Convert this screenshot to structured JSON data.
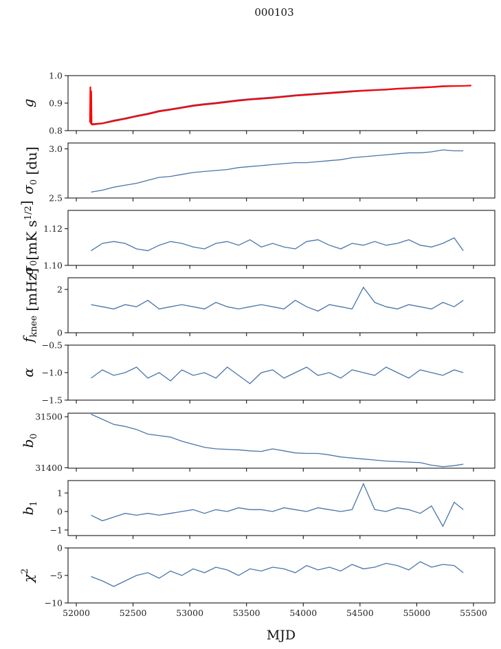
{
  "chart_data": {
    "type": "line",
    "title": "000103",
    "xlabel": "MJD",
    "xlim": [
      51927,
      55688
    ],
    "xticks": [
      52000,
      52500,
      53000,
      53500,
      54000,
      54500,
      55000,
      55500
    ],
    "xtick_labels": [
      "52000",
      "52500",
      "53000",
      "53500",
      "54000",
      "54500",
      "55000",
      "55500"
    ],
    "x": [
      52130,
      52230,
      52330,
      52430,
      52530,
      52630,
      52730,
      52830,
      52930,
      53030,
      53130,
      53230,
      53330,
      53430,
      53530,
      53630,
      53730,
      53830,
      53930,
      54030,
      54130,
      54230,
      54330,
      54430,
      54530,
      54630,
      54730,
      54830,
      54930,
      55030,
      55130,
      55230,
      55330,
      55410
    ],
    "colors": {
      "series": "#4a74a8",
      "highlight": "#ff0000",
      "axes": "#000000"
    },
    "panels": [
      {
        "ylabel": {
          "base": "g",
          "sub": "",
          "sup": "",
          "suffix": ""
        },
        "ylim": [
          0.8,
          1.0
        ],
        "yticks": [
          0.8,
          0.9,
          1.0
        ],
        "ytick_labels": [
          "0.8",
          "0.9",
          "1.0"
        ],
        "series": [
          {
            "name": "g",
            "color": "#4a74a8",
            "values": [
              0.825,
              0.828,
              0.838,
              0.846,
              0.855,
              0.863,
              0.873,
              0.879,
              0.886,
              0.893,
              0.898,
              0.902,
              0.907,
              0.912,
              0.916,
              0.919,
              0.922,
              0.926,
              0.93,
              0.933,
              0.936,
              0.939,
              0.942,
              0.945,
              0.947,
              0.949,
              0.951,
              0.954,
              0.956,
              0.958,
              0.96,
              0.963,
              0.963,
              0.962
            ]
          },
          {
            "name": "g_ref",
            "color": "#ff0000",
            "x": [
              52120,
              52124,
              52127,
              52131,
              52135,
              52140,
              52230,
              52330,
              52430,
              52530,
              52630,
              52730,
              52830,
              52930,
              53030,
              53130,
              53230,
              53330,
              53430,
              53530,
              53630,
              53730,
              53830,
              53930,
              54030,
              54130,
              54230,
              54330,
              54430,
              54530,
              54630,
              54730,
              54830,
              54930,
              55030,
              55130,
              55230,
              55330,
              55430,
              55480
            ],
            "values": [
              0.83,
              0.96,
              0.825,
              0.945,
              0.823,
              0.822,
              0.826,
              0.835,
              0.843,
              0.852,
              0.86,
              0.87,
              0.876,
              0.883,
              0.89,
              0.895,
              0.899,
              0.904,
              0.909,
              0.913,
              0.916,
              0.919,
              0.923,
              0.927,
              0.93,
              0.933,
              0.936,
              0.939,
              0.942,
              0.945,
              0.947,
              0.949,
              0.952,
              0.954,
              0.956,
              0.958,
              0.961,
              0.962,
              0.963,
              0.964
            ]
          }
        ]
      },
      {
        "ylabel": {
          "base": "σ",
          "sub": "0",
          "sup": "",
          "suffix": " [du]"
        },
        "ylim": [
          2.5,
          3.06
        ],
        "yticks": [
          2.5,
          3.0
        ],
        "ytick_labels": [
          "2.5",
          "3.0"
        ],
        "series": [
          {
            "name": "sigma0_du",
            "color": "#4a74a8",
            "values": [
              2.56,
              2.58,
              2.61,
              2.63,
              2.65,
              2.68,
              2.71,
              2.72,
              2.74,
              2.76,
              2.77,
              2.78,
              2.79,
              2.81,
              2.82,
              2.83,
              2.84,
              2.85,
              2.86,
              2.86,
              2.87,
              2.88,
              2.89,
              2.91,
              2.92,
              2.93,
              2.94,
              2.95,
              2.96,
              2.96,
              2.97,
              2.99,
              2.98,
              2.98
            ]
          }
        ]
      },
      {
        "ylabel": {
          "base": "σ",
          "sub": "0",
          "sup": "1/2",
          "suffix": "[mK s",
          "close": "]"
        },
        "ylim": [
          1.1,
          1.13
        ],
        "yticks": [
          1.1,
          1.12
        ],
        "ytick_labels": [
          "1.10",
          "1.12"
        ],
        "series": [
          {
            "name": "sigma0_mK",
            "color": "#4a74a8",
            "values": [
              1.108,
              1.112,
              1.113,
              1.112,
              1.109,
              1.108,
              1.111,
              1.113,
              1.112,
              1.11,
              1.109,
              1.112,
              1.113,
              1.111,
              1.114,
              1.11,
              1.112,
              1.11,
              1.109,
              1.113,
              1.114,
              1.111,
              1.109,
              1.112,
              1.111,
              1.113,
              1.111,
              1.112,
              1.114,
              1.111,
              1.11,
              1.112,
              1.115,
              1.108
            ]
          }
        ]
      },
      {
        "ylabel": {
          "base": "f",
          "sub": "knee",
          "sup": "",
          "suffix": " [mHz]"
        },
        "ylim": [
          0,
          2.54
        ],
        "yticks": [
          0,
          2
        ],
        "ytick_labels": [
          "0",
          "2"
        ],
        "series": [
          {
            "name": "fknee",
            "color": "#4a74a8",
            "values": [
              1.3,
              1.2,
              1.1,
              1.3,
              1.2,
              1.5,
              1.1,
              1.2,
              1.3,
              1.2,
              1.1,
              1.4,
              1.2,
              1.1,
              1.2,
              1.3,
              1.2,
              1.1,
              1.5,
              1.2,
              1.0,
              1.3,
              1.2,
              1.1,
              2.1,
              1.4,
              1.2,
              1.1,
              1.3,
              1.2,
              1.1,
              1.4,
              1.2,
              1.5
            ]
          }
        ]
      },
      {
        "ylabel": {
          "base": "α",
          "sub": "",
          "sup": "",
          "suffix": ""
        },
        "ylim": [
          -1.5,
          -0.5
        ],
        "yticks": [
          -1.5,
          -1.0,
          -0.5
        ],
        "ytick_labels": [
          "−1.5",
          "−1.0",
          "−0.5"
        ],
        "series": [
          {
            "name": "alpha",
            "color": "#4a74a8",
            "values": [
              -1.1,
              -0.95,
              -1.05,
              -1.0,
              -0.9,
              -1.1,
              -1.0,
              -1.15,
              -0.95,
              -1.05,
              -1.0,
              -1.1,
              -0.9,
              -1.05,
              -1.2,
              -1.0,
              -0.95,
              -1.1,
              -1.0,
              -0.9,
              -1.05,
              -1.0,
              -1.1,
              -0.95,
              -1.0,
              -1.05,
              -0.9,
              -1.0,
              -1.1,
              -0.95,
              -1.0,
              -1.05,
              -0.95,
              -1.0
            ]
          }
        ]
      },
      {
        "ylabel": {
          "base": "b",
          "sub": "0",
          "sup": "",
          "suffix": ""
        },
        "ylim": [
          31399,
          31507
        ],
        "yticks": [
          31400,
          31500
        ],
        "ytick_labels": [
          "31400",
          "31500"
        ],
        "series": [
          {
            "name": "b0",
            "color": "#4a74a8",
            "values": [
              31505,
              31495,
              31485,
              31481,
              31475,
              31466,
              31463,
              31460,
              31452,
              31446,
              31440,
              31437,
              31436,
              31435,
              31433,
              31432,
              31437,
              31433,
              31429,
              31428,
              31428,
              31425,
              31421,
              31419,
              31417,
              31415,
              31413,
              31412,
              31411,
              31410,
              31405,
              31402,
              31404,
              31407
            ]
          }
        ]
      },
      {
        "ylabel": {
          "base": "b",
          "sub": "1",
          "sup": "",
          "suffix": ""
        },
        "ylim": [
          -1.3,
          1.67
        ],
        "yticks": [
          -1,
          0,
          1
        ],
        "ytick_labels": [
          "−1",
          "0",
          "1"
        ],
        "series": [
          {
            "name": "b1",
            "color": "#4a74a8",
            "values": [
              -0.2,
              -0.5,
              -0.3,
              -0.1,
              -0.2,
              -0.1,
              -0.2,
              -0.1,
              0.0,
              0.1,
              -0.1,
              0.1,
              0.0,
              0.2,
              0.1,
              0.1,
              0.0,
              0.2,
              0.1,
              0.0,
              0.2,
              0.1,
              0.0,
              0.1,
              1.5,
              0.1,
              0.0,
              0.2,
              0.1,
              -0.1,
              0.3,
              -0.8,
              0.5,
              0.1
            ]
          }
        ]
      },
      {
        "ylabel": {
          "base": "χ",
          "sub": "",
          "sup": "2",
          "suffix": ""
        },
        "ylim": [
          -10,
          0
        ],
        "yticks": [
          -10,
          -5,
          0
        ],
        "ytick_labels": [
          "−10",
          "−5",
          "0"
        ],
        "series": [
          {
            "name": "chi2",
            "color": "#4a74a8",
            "values": [
              -5.2,
              -6.0,
              -7.0,
              -6.0,
              -5.0,
              -4.5,
              -5.5,
              -4.2,
              -5.0,
              -3.8,
              -4.5,
              -3.5,
              -4.0,
              -5.0,
              -3.8,
              -4.2,
              -3.5,
              -3.8,
              -4.5,
              -3.2,
              -4.0,
              -3.5,
              -4.2,
              -3.0,
              -3.8,
              -3.5,
              -2.8,
              -3.2,
              -4.0,
              -2.5,
              -3.5,
              -3.0,
              -3.2,
              -4.5
            ]
          }
        ]
      }
    ]
  }
}
